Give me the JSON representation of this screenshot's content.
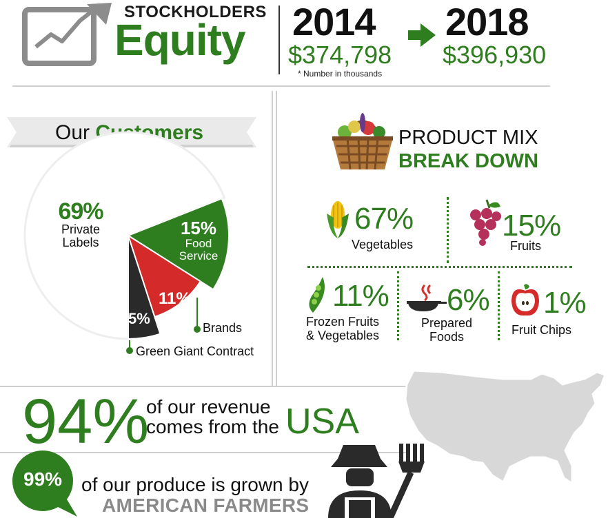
{
  "header": {
    "label_top": "STOCKHOLDERS",
    "label_main": "Equity",
    "year_start": "2014",
    "amount_start": "$374,798",
    "year_end": "2018",
    "amount_end": "$396,930",
    "note": "* Number in thousands"
  },
  "customers": {
    "title_plain": "Our",
    "title_accent": "Customers"
  },
  "chart_data": {
    "type": "pie",
    "slices": [
      {
        "name": "Private Labels",
        "value": 69,
        "label": "69%",
        "color": "#ffffff"
      },
      {
        "name": "Food Service",
        "value": 15,
        "label": "15%",
        "color": "#2e7d1e"
      },
      {
        "name": "Brands",
        "value": 11,
        "label": "11%",
        "color": "#d42a2a"
      },
      {
        "name": "Green Giant Contract",
        "value": 5,
        "label": "5%",
        "color": "#2a2a2a"
      }
    ],
    "labels": {
      "private_pct": "69%",
      "private_name_1": "Private",
      "private_name_2": "Labels",
      "food_pct": "15%",
      "food_name_1": "Food",
      "food_name_2": "Service",
      "brands_pct": "11%",
      "brands_name": "Brands",
      "gg_pct": "5%",
      "gg_name": "Green Giant Contract"
    }
  },
  "product_mix": {
    "title_1": "PRODUCT MIX",
    "title_2": "BREAK DOWN",
    "items": [
      {
        "pct": "67%",
        "label": "Vegetables"
      },
      {
        "pct": "15%",
        "label": "Fruits"
      },
      {
        "pct": "11%",
        "label_1": "Frozen Fruits",
        "label_2": "& Vegetables"
      },
      {
        "pct": "6%",
        "label_1": "Prepared",
        "label_2": "Foods"
      },
      {
        "pct": "1%",
        "label": "Fruit Chips"
      }
    ]
  },
  "revenue": {
    "pct": "94%",
    "line_1": "of our revenue",
    "line_2": "comes from the",
    "country": "USA"
  },
  "farmers": {
    "pct": "99%",
    "line_1": "of our produce is grown by",
    "line_2": "AMERICAN FARMERS"
  },
  "colors": {
    "accent": "#2e7d1e",
    "red": "#d42a2a",
    "dark": "#2a2a2a",
    "map": "#d8d8d8"
  }
}
